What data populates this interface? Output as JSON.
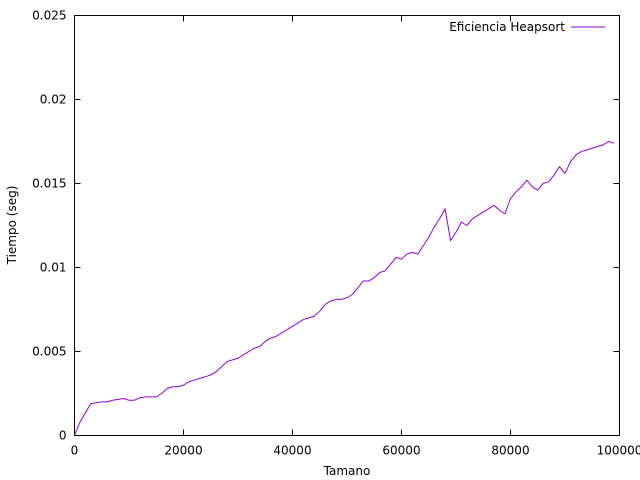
{
  "chart_data": {
    "type": "line",
    "title": "",
    "xlabel": "Tamano",
    "ylabel": "Tiempo (seg)",
    "xlim": [
      0,
      100000
    ],
    "ylim": [
      0,
      0.025
    ],
    "x_ticks": [
      "0",
      "20000",
      "40000",
      "60000",
      "80000",
      "100000"
    ],
    "y_ticks": [
      "0",
      "0.005",
      "0.01",
      "0.015",
      "0.02",
      "0.025"
    ],
    "grid": false,
    "legend_position": "top-right",
    "colors": {
      "series": "#9400d3",
      "axes": "#000000",
      "background": "#ffffff"
    },
    "series": [
      {
        "name": "Eficiencia Heapsort",
        "x": [
          0,
          1000,
          3000,
          4000,
          5000,
          6000,
          7000,
          8000,
          9000,
          10000,
          11000,
          12000,
          13000,
          14000,
          15000,
          16000,
          17000,
          18000,
          19000,
          20000,
          21000,
          22000,
          23000,
          24000,
          25000,
          26000,
          27000,
          28000,
          29000,
          30000,
          31000,
          32000,
          33000,
          34000,
          35000,
          36000,
          37000,
          38000,
          39000,
          40000,
          41000,
          42000,
          43000,
          44000,
          45000,
          46000,
          47000,
          48000,
          49000,
          50000,
          51000,
          52000,
          53000,
          54000,
          55000,
          56000,
          57000,
          58000,
          59000,
          60000,
          61000,
          62000,
          63000,
          64000,
          65000,
          66000,
          67000,
          68000,
          69000,
          70000,
          71000,
          72000,
          73000,
          74000,
          75000,
          76000,
          77000,
          78000,
          79000,
          80000,
          81000,
          82000,
          83000,
          84000,
          85000,
          86000,
          87000,
          88000,
          89000,
          90000,
          91000,
          92000,
          93000,
          94000,
          95000,
          96000,
          97000,
          98000,
          99000
        ],
        "y": [
          0.0,
          0.0008,
          0.0019,
          0.00195,
          0.002,
          0.002,
          0.0021,
          0.00215,
          0.0022,
          0.0021,
          0.0021,
          0.00225,
          0.0023,
          0.0023,
          0.0023,
          0.0025,
          0.0028,
          0.0029,
          0.0029,
          0.003,
          0.0032,
          0.0033,
          0.0034,
          0.0035,
          0.0036,
          0.0038,
          0.0041,
          0.0044,
          0.0045,
          0.0046,
          0.0048,
          0.005,
          0.0052,
          0.0053,
          0.0056,
          0.0058,
          0.0059,
          0.0061,
          0.0063,
          0.0065,
          0.0067,
          0.0069,
          0.007,
          0.0071,
          0.0074,
          0.0078,
          0.008,
          0.0081,
          0.0081,
          0.0082,
          0.0084,
          0.0088,
          0.0092,
          0.0092,
          0.0094,
          0.0097,
          0.0098,
          0.0102,
          0.0106,
          0.0105,
          0.0108,
          0.0109,
          0.0108,
          0.0113,
          0.0118,
          0.0124,
          0.0129,
          0.0135,
          0.0116,
          0.0121,
          0.0127,
          0.0125,
          0.0129,
          0.0131,
          0.0133,
          0.0135,
          0.0137,
          0.0134,
          0.0132,
          0.0141,
          0.0145,
          0.0148,
          0.0152,
          0.0148,
          0.0146,
          0.015,
          0.0151,
          0.0155,
          0.016,
          0.0156,
          0.0163,
          0.0167,
          0.0169,
          0.017,
          0.0171,
          0.0172,
          0.0173,
          0.0175,
          0.0174
        ]
      }
    ]
  }
}
